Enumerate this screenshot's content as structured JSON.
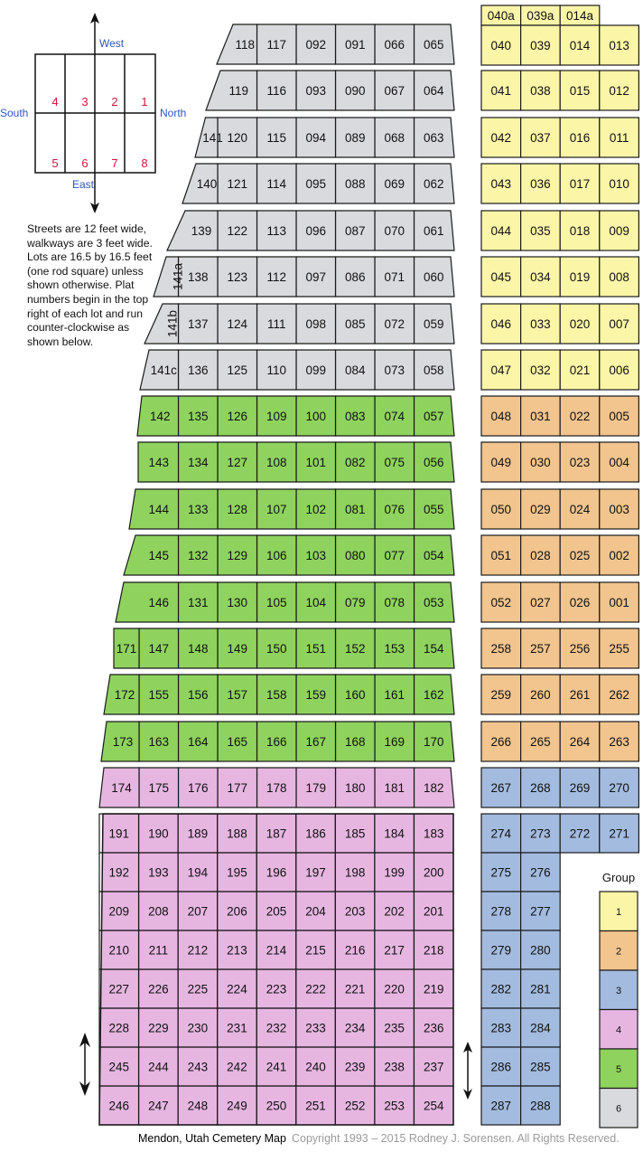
{
  "compass": {
    "west": "West",
    "east": "East",
    "south": "South",
    "north": "North",
    "lots_top": [
      "4",
      "3",
      "2",
      "1"
    ],
    "lots_bottom": [
      "5",
      "6",
      "7",
      "8"
    ]
  },
  "notes": "Streets are 12 feet wide, walkways are 3 feet wide. Lots are 16.5 by 16.5 feet (one rod square) unless shown otherwise. Plat numbers begin in the top right of each lot and run counter-clockwise as shown below.",
  "group_colors": {
    "1": "#fbf5a8",
    "2": "#f2c48e",
    "3": "#a3bbdf",
    "4": "#e6b6e1",
    "5": "#8fd35e",
    "6": "#d9dadd"
  },
  "legend": {
    "title": "Group",
    "items": [
      {
        "label": "1",
        "color": "#fbf5a8"
      },
      {
        "label": "2",
        "color": "#f2c48e"
      },
      {
        "label": "3",
        "color": "#a3bbdf"
      },
      {
        "label": "4",
        "color": "#e6b6e1"
      },
      {
        "label": "5",
        "color": "#8fd35e"
      },
      {
        "label": "6",
        "color": "#d9dadd"
      }
    ]
  },
  "west_block": [
    {
      "group": "6",
      "lots": [
        "118",
        "117",
        "092",
        "091",
        "066",
        "065"
      ]
    },
    {
      "group": "6",
      "lots": [
        "119",
        "116",
        "093",
        "090",
        "067",
        "064"
      ]
    },
    {
      "group": "6",
      "lots": [
        "141",
        "120",
        "115",
        "094",
        "089",
        "068",
        "063"
      ]
    },
    {
      "group": "6",
      "lots": [
        "140",
        "121",
        "114",
        "095",
        "088",
        "069",
        "062"
      ]
    },
    {
      "group": "6",
      "lots": [
        "139",
        "122",
        "113",
        "096",
        "087",
        "070",
        "061"
      ]
    },
    {
      "group": "6",
      "lots": [
        "141a",
        "138",
        "123",
        "112",
        "097",
        "086",
        "071",
        "060"
      ]
    },
    {
      "group": "6",
      "lots": [
        "141b",
        "137",
        "124",
        "111",
        "098",
        "085",
        "072",
        "059"
      ]
    },
    {
      "group": "6",
      "lots": [
        "141c",
        "136",
        "125",
        "110",
        "099",
        "084",
        "073",
        "058"
      ]
    },
    {
      "group": "5",
      "lots": [
        "142",
        "135",
        "126",
        "109",
        "100",
        "083",
        "074",
        "057"
      ]
    },
    {
      "group": "5",
      "lots": [
        "143",
        "134",
        "127",
        "108",
        "101",
        "082",
        "075",
        "056"
      ]
    },
    {
      "group": "5",
      "lots": [
        "144",
        "133",
        "128",
        "107",
        "102",
        "081",
        "076",
        "055"
      ]
    },
    {
      "group": "5",
      "lots": [
        "145",
        "132",
        "129",
        "106",
        "103",
        "080",
        "077",
        "054"
      ]
    },
    {
      "group": "5",
      "lots": [
        "146",
        "131",
        "130",
        "105",
        "104",
        "079",
        "078",
        "053"
      ]
    },
    {
      "group": "5",
      "lots": [
        "171",
        "147",
        "148",
        "149",
        "150",
        "151",
        "152",
        "153",
        "154"
      ]
    },
    {
      "group": "5",
      "lots": [
        "172",
        "155",
        "156",
        "157",
        "158",
        "159",
        "160",
        "161",
        "162"
      ]
    },
    {
      "group": "5",
      "lots": [
        "173",
        "163",
        "164",
        "165",
        "166",
        "167",
        "168",
        "169",
        "170"
      ]
    },
    {
      "group": "4",
      "lots": [
        "174",
        "175",
        "176",
        "177",
        "178",
        "179",
        "180",
        "181",
        "182"
      ]
    }
  ],
  "west_grid": [
    [
      "191",
      "190",
      "189",
      "188",
      "187",
      "186",
      "185",
      "184",
      "183"
    ],
    [
      "192",
      "193",
      "194",
      "195",
      "196",
      "197",
      "198",
      "199",
      "200"
    ],
    [
      "209",
      "208",
      "207",
      "206",
      "205",
      "204",
      "203",
      "202",
      "201"
    ],
    [
      "210",
      "211",
      "212",
      "213",
      "214",
      "215",
      "216",
      "217",
      "218"
    ],
    [
      "227",
      "226",
      "225",
      "224",
      "223",
      "222",
      "221",
      "220",
      "219"
    ],
    [
      "228",
      "229",
      "230",
      "231",
      "232",
      "233",
      "234",
      "235",
      "236"
    ],
    [
      "245",
      "244",
      "243",
      "242",
      "241",
      "240",
      "239",
      "238",
      "237"
    ],
    [
      "246",
      "247",
      "248",
      "249",
      "250",
      "251",
      "252",
      "253",
      "254"
    ]
  ],
  "east_top_extra": [
    "040a",
    "039a",
    "014a"
  ],
  "east_block": [
    {
      "group": "1",
      "lots": [
        "040",
        "039",
        "014",
        "013"
      ]
    },
    {
      "group": "1",
      "lots": [
        "041",
        "038",
        "015",
        "012"
      ]
    },
    {
      "group": "1",
      "lots": [
        "042",
        "037",
        "016",
        "011"
      ]
    },
    {
      "group": "1",
      "lots": [
        "043",
        "036",
        "017",
        "010"
      ]
    },
    {
      "group": "1",
      "lots": [
        "044",
        "035",
        "018",
        "009"
      ]
    },
    {
      "group": "1",
      "lots": [
        "045",
        "034",
        "019",
        "008"
      ]
    },
    {
      "group": "1",
      "lots": [
        "046",
        "033",
        "020",
        "007"
      ]
    },
    {
      "group": "1",
      "lots": [
        "047",
        "032",
        "021",
        "006"
      ]
    },
    {
      "group": "2",
      "lots": [
        "048",
        "031",
        "022",
        "005"
      ]
    },
    {
      "group": "2",
      "lots": [
        "049",
        "030",
        "023",
        "004"
      ]
    },
    {
      "group": "2",
      "lots": [
        "050",
        "029",
        "024",
        "003"
      ]
    },
    {
      "group": "2",
      "lots": [
        "051",
        "028",
        "025",
        "002"
      ]
    },
    {
      "group": "2",
      "lots": [
        "052",
        "027",
        "026",
        "001"
      ]
    },
    {
      "group": "2",
      "lots": [
        "258",
        "257",
        "256",
        "255"
      ]
    },
    {
      "group": "2",
      "lots": [
        "259",
        "260",
        "261",
        "262"
      ]
    },
    {
      "group": "2",
      "lots": [
        "266",
        "265",
        "264",
        "263"
      ]
    },
    {
      "group": "3",
      "lots": [
        "267",
        "268",
        "269",
        "270"
      ]
    }
  ],
  "east_grid_top": [
    "274",
    "273",
    "272",
    "271"
  ],
  "east_grid": [
    [
      "275",
      "276"
    ],
    [
      "278",
      "277"
    ],
    [
      "279",
      "280"
    ],
    [
      "282",
      "281"
    ],
    [
      "283",
      "284"
    ],
    [
      "286",
      "285"
    ],
    [
      "287",
      "288"
    ]
  ],
  "footer": {
    "title": "Mendon, Utah Cemetery Map",
    "copyright": "Copyright 1993 – 2015 Rodney J. Sorensen. All Rights Reserved."
  }
}
